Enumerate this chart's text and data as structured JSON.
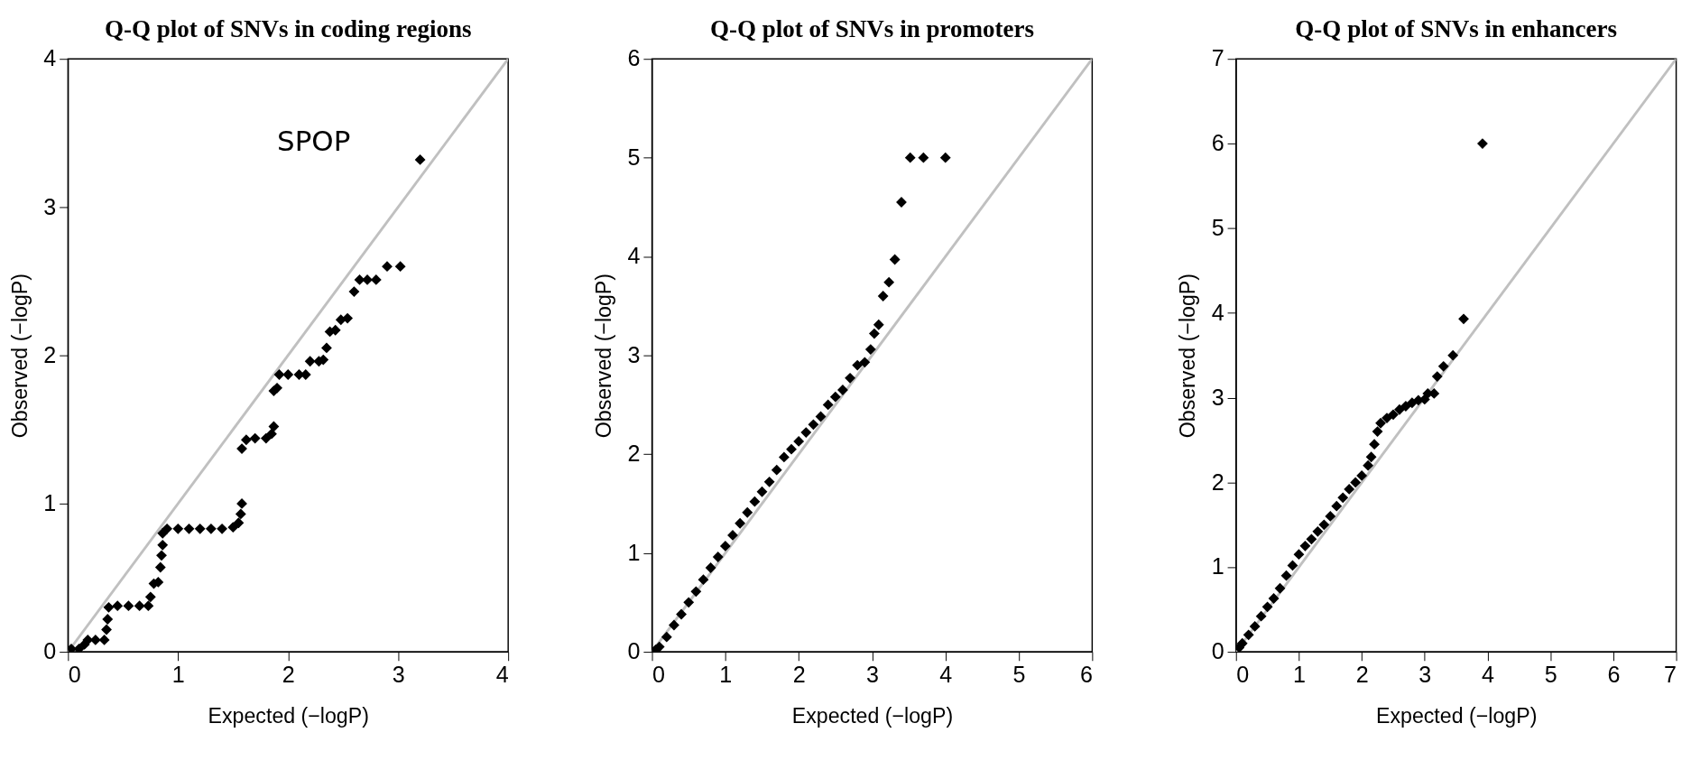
{
  "chart_data": [
    {
      "type": "scatter",
      "title": "Q-Q plot of SNVs in coding regions",
      "xlabel": "Expected (−logP)",
      "ylabel": "Observed (−logP)",
      "xlim": [
        0,
        4
      ],
      "ylim": [
        0,
        4
      ],
      "xticks": [
        0,
        1,
        2,
        3,
        4
      ],
      "yticks": [
        0,
        1,
        2,
        3,
        4
      ],
      "grid": false,
      "annotations": [
        {
          "text": "SPOP",
          "x": 3.2,
          "y": 3.32
        }
      ],
      "series": [
        {
          "type": "line",
          "color": "#c0c0c0",
          "x": [
            0,
            4
          ],
          "values": [
            0,
            4
          ]
        },
        {
          "marker": "diamond",
          "color": "#000000",
          "x": [
            0.03,
            0.1,
            0.15,
            0.18,
            0.25,
            0.33,
            0.35,
            0.36,
            0.37,
            0.45,
            0.55,
            0.65,
            0.73,
            0.75,
            0.78,
            0.82,
            0.84,
            0.85,
            0.86,
            0.86,
            0.9,
            1.0,
            1.1,
            1.2,
            1.3,
            1.4,
            1.5,
            1.55,
            1.57,
            1.58,
            1.58,
            1.62,
            1.7,
            1.8,
            1.85,
            1.87,
            1.87,
            1.9,
            1.92,
            2.0,
            2.1,
            2.16,
            2.2,
            2.28,
            2.32,
            2.35,
            2.38,
            2.43,
            2.48,
            2.54,
            2.6,
            2.65,
            2.72,
            2.8,
            2.9,
            3.02,
            3.2
          ],
          "values": [
            0.02,
            0.02,
            0.05,
            0.08,
            0.08,
            0.08,
            0.15,
            0.22,
            0.3,
            0.31,
            0.31,
            0.31,
            0.31,
            0.37,
            0.46,
            0.47,
            0.57,
            0.65,
            0.72,
            0.8,
            0.83,
            0.83,
            0.83,
            0.83,
            0.83,
            0.83,
            0.84,
            0.87,
            0.93,
            1.0,
            1.37,
            1.43,
            1.44,
            1.44,
            1.47,
            1.52,
            1.76,
            1.78,
            1.87,
            1.87,
            1.87,
            1.87,
            1.96,
            1.96,
            1.97,
            2.05,
            2.16,
            2.17,
            2.24,
            2.25,
            2.43,
            2.51,
            2.51,
            2.51,
            2.6,
            2.6,
            3.32
          ]
        }
      ]
    },
    {
      "type": "scatter",
      "title": "Q-Q plot of SNVs in promoters",
      "xlabel": "Expected (−logP)",
      "ylabel": "Observed (−logP)",
      "xlim": [
        0,
        6
      ],
      "ylim": [
        0,
        6
      ],
      "xticks": [
        0,
        1,
        2,
        3,
        4,
        5,
        6
      ],
      "yticks": [
        0,
        1,
        2,
        3,
        4,
        5,
        6
      ],
      "grid": false,
      "series": [
        {
          "type": "line",
          "color": "#c0c0c0",
          "x": [
            0,
            6
          ],
          "values": [
            0,
            6
          ]
        },
        {
          "marker": "diamond",
          "color": "#000000",
          "x": [
            0.05,
            0.1,
            0.2,
            0.3,
            0.4,
            0.5,
            0.6,
            0.7,
            0.8,
            0.9,
            1.0,
            1.1,
            1.2,
            1.3,
            1.4,
            1.5,
            1.6,
            1.7,
            1.8,
            1.9,
            2.0,
            2.1,
            2.2,
            2.3,
            2.4,
            2.5,
            2.6,
            2.7,
            2.8,
            2.9,
            2.98,
            3.03,
            3.09,
            3.15,
            3.23,
            3.31,
            3.4,
            3.52,
            3.7,
            4.0
          ],
          "values": [
            0.02,
            0.05,
            0.15,
            0.27,
            0.38,
            0.5,
            0.61,
            0.73,
            0.85,
            0.96,
            1.07,
            1.18,
            1.3,
            1.41,
            1.52,
            1.62,
            1.72,
            1.84,
            1.97,
            2.05,
            2.13,
            2.22,
            2.3,
            2.38,
            2.5,
            2.58,
            2.65,
            2.77,
            2.9,
            2.93,
            3.06,
            3.22,
            3.31,
            3.6,
            3.74,
            3.97,
            4.55,
            5.0,
            5.0,
            5.0
          ]
        }
      ]
    },
    {
      "type": "scatter",
      "title": "Q-Q plot of SNVs in enhancers",
      "xlabel": "Expected (−logP)",
      "ylabel": "Observed (−logP)",
      "xlim": [
        0,
        7
      ],
      "ylim": [
        0,
        7
      ],
      "xticks": [
        0,
        1,
        2,
        3,
        4,
        5,
        6,
        7
      ],
      "yticks": [
        0,
        1,
        2,
        3,
        4,
        5,
        6,
        7
      ],
      "grid": false,
      "series": [
        {
          "type": "line",
          "color": "#c0c0c0",
          "x": [
            0,
            7
          ],
          "values": [
            0,
            7
          ]
        },
        {
          "marker": "diamond",
          "color": "#000000",
          "x": [
            0.05,
            0.1,
            0.2,
            0.3,
            0.4,
            0.5,
            0.6,
            0.7,
            0.8,
            0.9,
            1.0,
            1.1,
            1.2,
            1.3,
            1.4,
            1.5,
            1.6,
            1.7,
            1.8,
            1.9,
            2.0,
            2.1,
            2.15,
            2.2,
            2.25,
            2.3,
            2.4,
            2.5,
            2.6,
            2.7,
            2.8,
            2.9,
            3.0,
            3.05,
            3.15,
            3.2,
            3.3,
            3.45,
            3.62,
            3.92
          ],
          "values": [
            0.05,
            0.1,
            0.2,
            0.3,
            0.42,
            0.53,
            0.63,
            0.75,
            0.9,
            1.02,
            1.15,
            1.25,
            1.33,
            1.42,
            1.5,
            1.6,
            1.72,
            1.82,
            1.92,
            2.0,
            2.08,
            2.2,
            2.3,
            2.45,
            2.6,
            2.7,
            2.76,
            2.8,
            2.86,
            2.9,
            2.94,
            2.97,
            2.98,
            3.05,
            3.05,
            3.25,
            3.37,
            3.5,
            3.93,
            6.0
          ]
        }
      ]
    }
  ]
}
